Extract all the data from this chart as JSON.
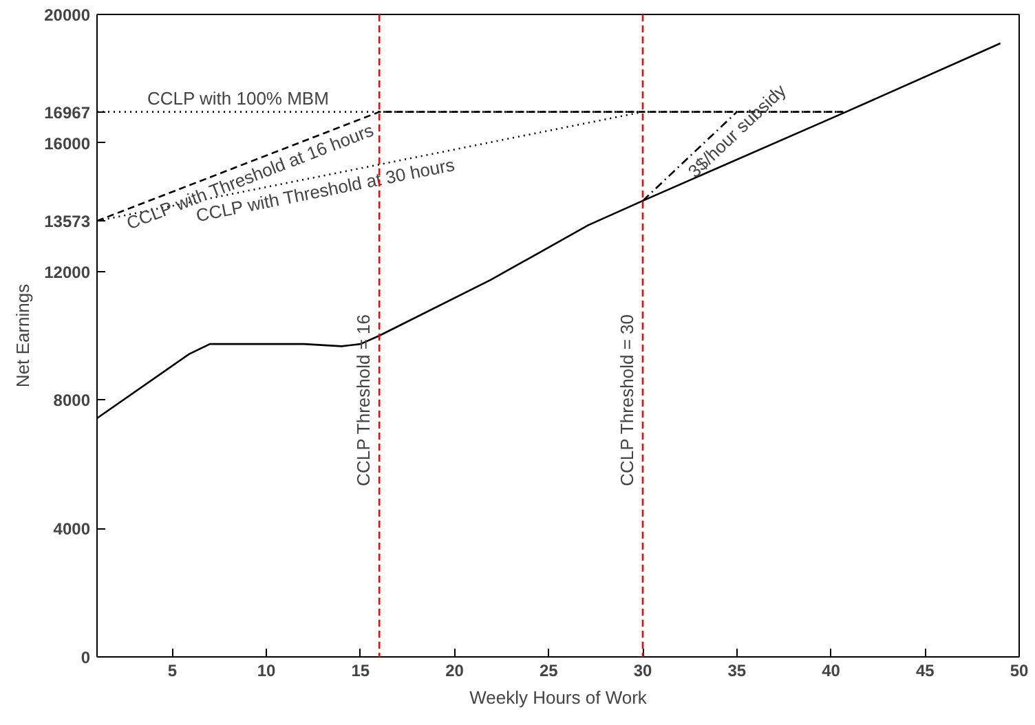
{
  "chart_data": {
    "type": "line",
    "xlabel": "Weekly Hours of Work",
    "ylabel": "Net Earnings",
    "xlim": [
      1,
      50
    ],
    "ylim": [
      0,
      20000
    ],
    "xticks": [
      5,
      10,
      15,
      20,
      25,
      30,
      35,
      40,
      45,
      50
    ],
    "yticks": [
      0,
      4000,
      8000,
      12000,
      13573,
      16000,
      16967,
      20000
    ],
    "grid": false,
    "annotations": [
      {
        "text": "CCLP with 100% MBM",
        "x": 8.5,
        "y": 16967
      },
      {
        "text": "CCLP with Threshold  at 16 hours",
        "x": 9,
        "y": 15383
      },
      {
        "text": "CCLP with Threshold at 30 hours",
        "x": 13,
        "y": 14957
      },
      {
        "text": "3$/hour subsidy",
        "x": 34.5,
        "y": 16690
      }
    ],
    "series": [
      {
        "color": "#000000",
        "line_style": "solid",
        "x": [
          1,
          5.9,
          7,
          12,
          14,
          15,
          16,
          21.9,
          27.1,
          30,
          40.8,
          49
        ],
        "values": [
          7430,
          9430,
          9740,
          9740,
          9670,
          9740,
          10000,
          11730,
          13440,
          14200,
          16967,
          19100
        ]
      },
      {
        "color": "#000000",
        "line_style": "dotted",
        "x": [
          1,
          40.8
        ],
        "values": [
          16967,
          16967
        ]
      },
      {
        "color": "#000000",
        "line_style": "dashed",
        "x": [
          1,
          16,
          40.8
        ],
        "values": [
          13573,
          16967,
          16967
        ]
      },
      {
        "color": "#000000",
        "line_style": "dotted",
        "x": [
          1,
          30
        ],
        "values": [
          13573,
          16967
        ]
      },
      {
        "color": "#000000",
        "line_style": "dashdot",
        "x": [
          30,
          35
        ],
        "values": [
          14200,
          16967
        ]
      }
    ],
    "ref_lines": [
      {
        "axis": "x",
        "value": 16,
        "label": "CCLP Threshold = 16",
        "color": "#ff0000",
        "line_style": "dashed"
      },
      {
        "axis": "x",
        "value": 30,
        "label": "CCLP Threshold = 30",
        "color": "#ff0000",
        "line_style": "dashed"
      }
    ]
  }
}
